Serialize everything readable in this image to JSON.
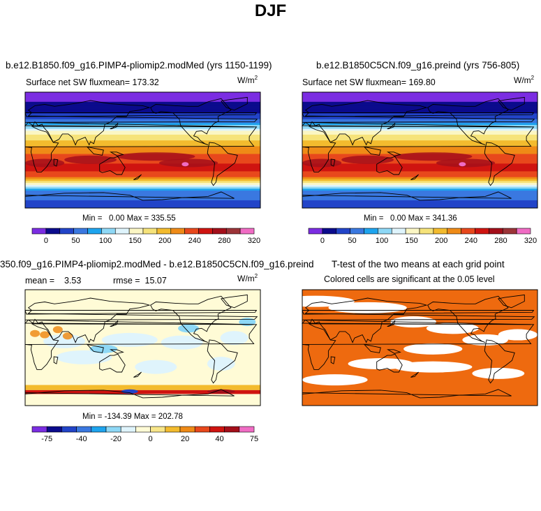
{
  "page": {
    "title": "DJF"
  },
  "panels": {
    "p1": {
      "title": "b.e12.B1850.f09_g16.PIMP4-pliomip2.modMed (yrs 1150-1199)",
      "subtitle": "Surface net SW flux",
      "mean_label": "mean=",
      "mean_value": "173.32",
      "units": "W/m",
      "units_sup": "2",
      "min_label": "Min =",
      "min_value": "0.00",
      "max_label": "Max =",
      "max_value": "335.55"
    },
    "p2": {
      "title": "b.e12.B1850C5CN.f09_g16.preind (yrs 756-805)",
      "subtitle": "Surface net SW flux",
      "mean_label": "mean=",
      "mean_value": "169.80",
      "units": "W/m",
      "units_sup": "2",
      "min_label": "Min =",
      "min_value": "0.00",
      "max_label": "Max =",
      "max_value": "341.36"
    },
    "p3": {
      "title": "350.f09_g16.PIMP4-pliomip2.modMed - b.e12.B1850C5CN.f09_g16.preind",
      "mean_label": "mean =",
      "mean_value": "3.53",
      "rmse_label": "rmse =",
      "rmse_value": "15.07",
      "units": "W/m",
      "units_sup": "2",
      "min_label": "Min =",
      "min_value": "-134.39",
      "max_label": "Max =",
      "max_value": "202.78"
    },
    "p4": {
      "title": "T-test of the two means at each grid point",
      "subtitle": "Colored cells are significant at the 0.05 level"
    }
  },
  "chart_data": [
    {
      "type": "heatmap",
      "title": "b.e12.B1850.f09_g16.PIMP4-pliomip2.modMed (yrs 1150-1199)",
      "variable": "Surface net SW flux",
      "units": "W/m2",
      "mean": 173.32,
      "min": 0.0,
      "max": 335.55,
      "colorbar_ticks": [
        "0",
        "50",
        "100",
        "150",
        "200",
        "240",
        "280",
        "320"
      ],
      "colorbar_colors": [
        "#7b2de2",
        "#0b0b8c",
        "#2244c8",
        "#3a78e0",
        "#1ea4ee",
        "#8ed8f6",
        "#dff4fc",
        "#fbf6c4",
        "#f6e37a",
        "#f3bb2e",
        "#ef8b17",
        "#e8481c",
        "#cf1410",
        "#a40f1a",
        "#9c3438",
        "#f06cc4"
      ]
    },
    {
      "type": "heatmap",
      "title": "b.e12.B1850C5CN.f09_g16.preind (yrs 756-805)",
      "variable": "Surface net SW flux",
      "units": "W/m2",
      "mean": 169.8,
      "min": 0.0,
      "max": 341.36,
      "colorbar_ticks": [
        "0",
        "50",
        "100",
        "150",
        "200",
        "240",
        "280",
        "320"
      ],
      "colorbar_colors": [
        "#7b2de2",
        "#0b0b8c",
        "#2244c8",
        "#3a78e0",
        "#1ea4ee",
        "#8ed8f6",
        "#dff4fc",
        "#fbf6c4",
        "#f6e37a",
        "#f3bb2e",
        "#ef8b17",
        "#e8481c",
        "#cf1410",
        "#a40f1a",
        "#9c3438",
        "#f06cc4"
      ]
    },
    {
      "type": "heatmap",
      "title": "350.f09_g16.PIMP4-pliomip2.modMed - b.e12.B1850C5CN.f09_g16.preind",
      "units": "W/m2",
      "mean": 3.53,
      "rmse": 15.07,
      "min": -134.39,
      "max": 202.78,
      "colorbar_ticks": [
        "-75",
        "-40",
        "-20",
        "0",
        "20",
        "40",
        "75"
      ],
      "colorbar_colors": [
        "#7b2de2",
        "#0b0b8c",
        "#2244c8",
        "#3a78e0",
        "#1ea4ee",
        "#8ed8f6",
        "#dff4fc",
        "#fffbd6",
        "#f8e68a",
        "#f3bb2e",
        "#ef8b17",
        "#e8481c",
        "#cf1410",
        "#a40f1a",
        "#f06cc4"
      ]
    },
    {
      "type": "heatmap",
      "title": "T-test of the two means at each grid point",
      "subtitle": "Colored cells are significant at the 0.05 level",
      "significant_color": "#ee6a0f",
      "not_significant_color": "#ffffff"
    }
  ]
}
